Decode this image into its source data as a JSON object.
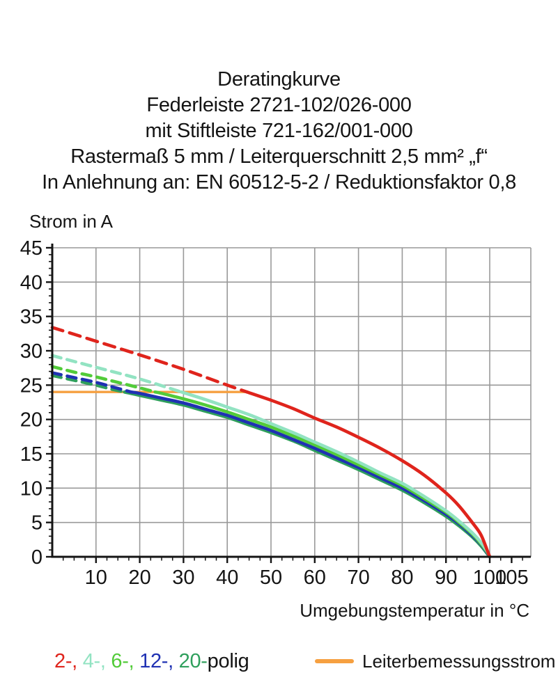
{
  "title_lines": [
    "Deratingkurve",
    "Federleiste 2721-102/026-000",
    "mit Stiftleiste 721-162/001-000",
    "Rastermaß 5 mm / Leiterquerschnitt 2,5 mm² „f“",
    "In Anlehnung an: EN 60512-5-2 / Reduktionsfaktor 0,8"
  ],
  "chart_data": {
    "type": "line",
    "title": "Deratingkurve",
    "xlabel": "Umgebungstemperatur in °C",
    "ylabel": "Strom in A",
    "xlim": [
      0,
      109
    ],
    "ylim": [
      0,
      45
    ],
    "x_ticks": [
      10,
      20,
      30,
      40,
      50,
      60,
      70,
      80,
      90,
      100,
      105
    ],
    "y_ticks": [
      0,
      5,
      10,
      15,
      20,
      25,
      30,
      35,
      40,
      45
    ],
    "x_minor_step": 2.5,
    "y_minor_step": 1,
    "grid": true,
    "grid_color": "#999999",
    "axis_color": "#141414",
    "rated_current": {
      "label": "Leiterbemessungsstrom",
      "value": 24,
      "x_start": 0,
      "x_end": 44.5,
      "color": "#F6A040"
    },
    "note": "curves dashed above rated current 24 A, solid below",
    "series": [
      {
        "name": "20-polig",
        "color": "#2F9F5C",
        "dash": "13 9",
        "dashed_points": [
          [
            0,
            26.4
          ],
          [
            5,
            25.7
          ],
          [
            10,
            25.0
          ],
          [
            13,
            24.5
          ],
          [
            16.5,
            24.0
          ]
        ],
        "solid_points": [
          [
            16.5,
            24.0
          ],
          [
            20,
            23.5
          ],
          [
            25,
            22.8
          ],
          [
            30,
            22.1
          ],
          [
            35,
            21.2
          ],
          [
            40,
            20.3
          ],
          [
            45,
            19.2
          ],
          [
            50,
            18.1
          ],
          [
            55,
            16.9
          ],
          [
            60,
            15.5
          ],
          [
            65,
            14.1
          ],
          [
            70,
            12.7
          ],
          [
            75,
            11.2
          ],
          [
            80,
            9.7
          ],
          [
            85,
            7.9
          ],
          [
            90,
            5.9
          ],
          [
            93,
            4.5
          ],
          [
            96,
            2.9
          ],
          [
            98,
            1.6
          ],
          [
            99.5,
            0.4
          ],
          [
            100,
            0
          ]
        ]
      },
      {
        "name": "12-polig",
        "color": "#1F31B3",
        "dash": "13 9",
        "dashed_points": [
          [
            0,
            26.8
          ],
          [
            5,
            26.1
          ],
          [
            10,
            25.4
          ],
          [
            14,
            24.7
          ],
          [
            18,
            24.0
          ]
        ],
        "solid_points": [
          [
            18,
            24.0
          ],
          [
            20,
            23.8
          ],
          [
            25,
            23.1
          ],
          [
            30,
            22.4
          ],
          [
            35,
            21.5
          ],
          [
            40,
            20.6
          ],
          [
            45,
            19.5
          ],
          [
            50,
            18.4
          ],
          [
            55,
            17.1
          ],
          [
            60,
            15.8
          ],
          [
            65,
            14.4
          ],
          [
            70,
            13.0
          ],
          [
            75,
            11.5
          ],
          [
            80,
            10.0
          ],
          [
            85,
            8.2
          ],
          [
            90,
            6.2
          ],
          [
            93,
            4.8
          ],
          [
            96,
            3.1
          ],
          [
            98,
            1.8
          ],
          [
            99.5,
            0.5
          ],
          [
            100,
            0
          ]
        ]
      },
      {
        "name": "6-polig",
        "color": "#52CB39",
        "dash": "13 9",
        "dashed_points": [
          [
            0,
            27.7
          ],
          [
            5,
            26.9
          ],
          [
            10,
            26.2
          ],
          [
            15,
            25.4
          ],
          [
            20,
            24.6
          ],
          [
            23.5,
            24.0
          ]
        ],
        "solid_points": [
          [
            23.5,
            24.0
          ],
          [
            25,
            23.8
          ],
          [
            30,
            23.0
          ],
          [
            35,
            22.1
          ],
          [
            40,
            21.1
          ],
          [
            45,
            20.0
          ],
          [
            50,
            18.9
          ],
          [
            55,
            17.6
          ],
          [
            60,
            16.3
          ],
          [
            65,
            14.9
          ],
          [
            70,
            13.4
          ],
          [
            75,
            11.9
          ],
          [
            80,
            10.4
          ],
          [
            85,
            8.5
          ],
          [
            90,
            6.5
          ],
          [
            93,
            5.0
          ],
          [
            96,
            3.3
          ],
          [
            98,
            1.9
          ],
          [
            99.5,
            0.6
          ],
          [
            100,
            0
          ]
        ]
      },
      {
        "name": "4-polig",
        "color": "#92E3C2",
        "dash": "13 9",
        "dashed_points": [
          [
            0,
            29.3
          ],
          [
            10,
            27.6
          ],
          [
            20,
            25.9
          ],
          [
            29.5,
            24.0
          ]
        ],
        "solid_points": [
          [
            29.5,
            24.0
          ],
          [
            35,
            22.9
          ],
          [
            40,
            21.8
          ],
          [
            45,
            20.7
          ],
          [
            50,
            19.4
          ],
          [
            55,
            18.1
          ],
          [
            60,
            16.7
          ],
          [
            65,
            15.3
          ],
          [
            70,
            13.8
          ],
          [
            75,
            12.2
          ],
          [
            80,
            10.7
          ],
          [
            85,
            8.8
          ],
          [
            90,
            6.7
          ],
          [
            93,
            5.2
          ],
          [
            96,
            3.5
          ],
          [
            98,
            2.1
          ],
          [
            99.5,
            0.7
          ],
          [
            100,
            0
          ]
        ]
      },
      {
        "name": "2-polig",
        "color": "#DF241C",
        "dash": "16 10",
        "dashed_points": [
          [
            0,
            33.4
          ],
          [
            10,
            31.4
          ],
          [
            20,
            29.4
          ],
          [
            30,
            27.3
          ],
          [
            40,
            25.0
          ],
          [
            44.5,
            24.0
          ]
        ],
        "solid_points": [
          [
            44.5,
            24.0
          ],
          [
            50,
            22.8
          ],
          [
            55,
            21.6
          ],
          [
            60,
            20.2
          ],
          [
            65,
            18.9
          ],
          [
            70,
            17.4
          ],
          [
            75,
            15.8
          ],
          [
            80,
            14.0
          ],
          [
            85,
            11.9
          ],
          [
            90,
            9.3
          ],
          [
            93,
            7.4
          ],
          [
            96,
            5.0
          ],
          [
            98,
            3.2
          ],
          [
            99.5,
            0.8
          ],
          [
            100,
            0
          ]
        ]
      }
    ]
  },
  "legend": {
    "poles": [
      {
        "label": "2-",
        "color": "#DF241C"
      },
      {
        "label": "4-",
        "color": "#92E3C2"
      },
      {
        "label": "6-",
        "color": "#52CB39"
      },
      {
        "label": "12-",
        "color": "#1F31B3"
      },
      {
        "label": "20-",
        "color": "#2F9F5C"
      }
    ],
    "suffix": "polig",
    "suffix_color": "#141414",
    "rated_label": "Leiterbemessungsstrom",
    "rated_color": "#F6A040"
  }
}
